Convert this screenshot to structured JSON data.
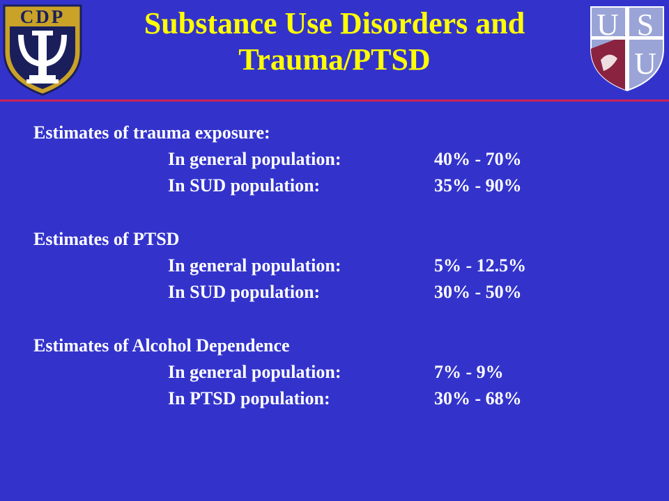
{
  "slide": {
    "title_line1": "Substance Use Disorders and",
    "title_line2": "Trauma/PTSD",
    "logos": {
      "left": {
        "text": "CDP",
        "icon": "psi-column-shield-icon",
        "colors": {
          "outer": "#c9a227",
          "inner": "#1a1f5c",
          "white": "#ffffff"
        }
      },
      "right": {
        "letters": [
          "U",
          "S",
          "U"
        ],
        "icon": "usu-shield-icon",
        "colors": {
          "blue": "#9aa4d6",
          "maroon": "#8a2340",
          "white": "#ffffff"
        }
      }
    },
    "colors": {
      "background": "#3333cc",
      "title": "#ffff00",
      "text": "#ffffff",
      "divider": "#cc2255"
    },
    "sections": [
      {
        "heading": "Estimates of trauma exposure:",
        "rows": [
          {
            "label": "In general population:",
            "value": "40% - 70%"
          },
          {
            "label": "In SUD population:",
            "value": "35% - 90%"
          }
        ]
      },
      {
        "heading": "Estimates of PTSD",
        "rows": [
          {
            "label": "In general population:",
            "value": "5% - 12.5%"
          },
          {
            "label": "In SUD population:",
            "value": "30% - 50%"
          }
        ]
      },
      {
        "heading": "Estimates of Alcohol Dependence",
        "rows": [
          {
            "label": "In general population:",
            "value": "7% - 9%"
          },
          {
            "label": "In PTSD population:",
            "value": "30% - 68%"
          }
        ]
      }
    ]
  }
}
